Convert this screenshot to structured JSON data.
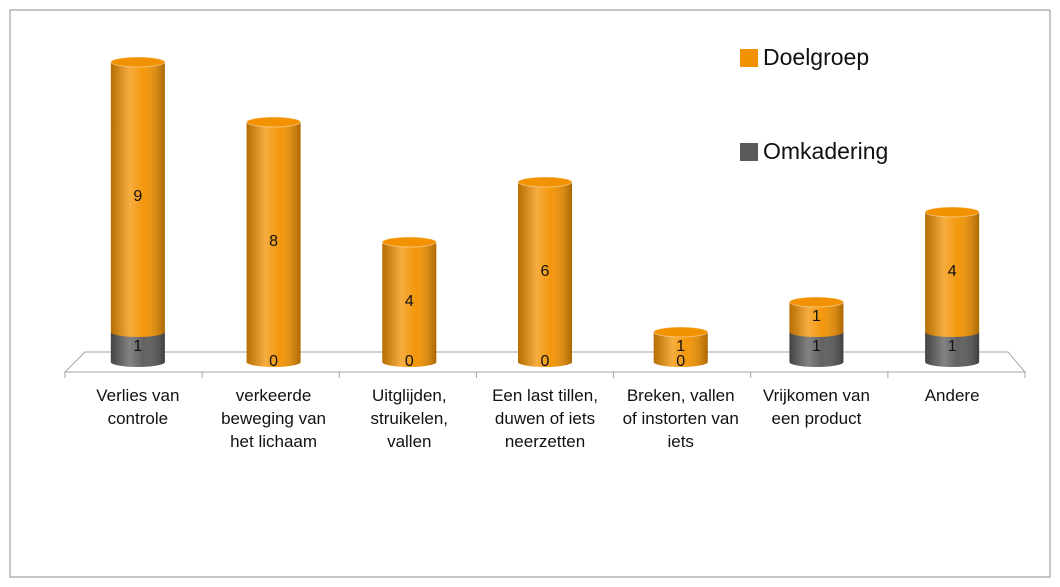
{
  "chart_data": {
    "type": "bar",
    "stacked": true,
    "categories": [
      "Verlies van controle",
      "verkeerde beweging van het lichaam",
      "Uitglijden, struikelen, vallen",
      "Een last tillen, duwen of iets neerzetten",
      "Breken, vallen of instorten van iets",
      "Vrijkomen van een product",
      "Andere"
    ],
    "series": [
      {
        "name": "Omkadering",
        "color": "#5a5a5a",
        "values": [
          1,
          0,
          0,
          0,
          0,
          1,
          1
        ]
      },
      {
        "name": "Doelgroep",
        "color": "#f39200",
        "values": [
          9,
          8,
          4,
          6,
          1,
          1,
          4
        ]
      }
    ],
    "legend": "top-right"
  }
}
